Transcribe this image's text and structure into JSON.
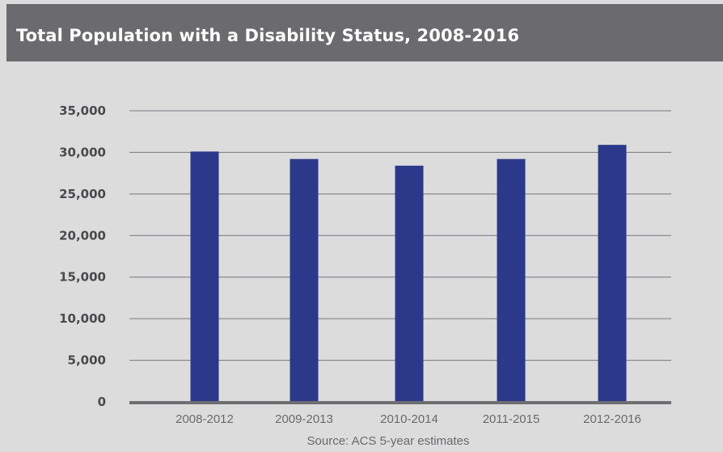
{
  "header": {
    "title": "Total Population with a Disability Status, 2008-2016"
  },
  "colors": {
    "header_bg": "#6b6b6e",
    "background": "#dcdcdd",
    "bar": "#2c388a",
    "gridline": "#77777a",
    "axis": "#6e6e70"
  },
  "chart_data": {
    "type": "bar",
    "title": "Total Population with a Disability Status, 2008-2016",
    "categories": [
      "2008-2012",
      "2009-2013",
      "2010-2014",
      "2011-2015",
      "2012-2016"
    ],
    "values": [
      30100,
      29200,
      28400,
      29200,
      30900
    ],
    "ylim": [
      0,
      35000
    ],
    "yticks": [
      "0",
      "5,000",
      "10,000",
      "15,000",
      "20,000",
      "25,000",
      "30,000",
      "35,000"
    ],
    "ytick_values": [
      0,
      5000,
      10000,
      15000,
      20000,
      25000,
      30000,
      35000
    ],
    "grid": true,
    "legend": "none",
    "source": "Source: ACS 5-year estimates"
  }
}
